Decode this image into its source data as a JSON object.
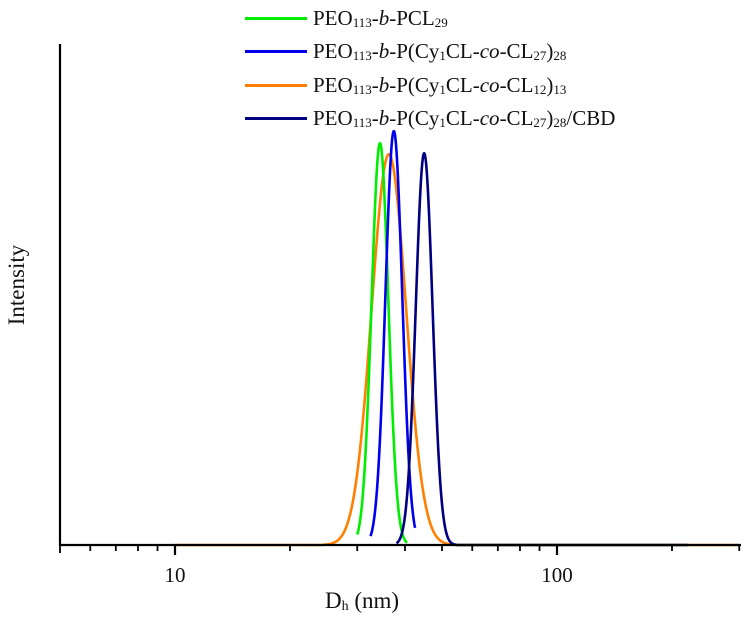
{
  "chart_data": {
    "type": "line",
    "title": "",
    "xlabel": "Dh (nm)",
    "xlabel_main": "D",
    "xlabel_sub": "h",
    "xlabel_unit": " (nm)",
    "ylabel": "Intensity",
    "xscale": "log",
    "xlim": [
      5,
      300
    ],
    "ylim": [
      0,
      100
    ],
    "x_tick_labels": [
      "10",
      "100"
    ],
    "x_major_ticks": [
      10,
      100
    ],
    "x_minor_ticks": [
      6,
      7,
      8,
      9,
      20,
      30,
      40,
      50,
      60,
      70,
      80,
      90,
      200,
      300
    ],
    "grid": false,
    "legend_position": "top-center",
    "series": [
      {
        "name": "PEO113-b-PCL29",
        "label_parts": [
          [
            "PEO",
            ""
          ],
          [
            "113",
            "sub"
          ],
          [
            "-",
            ""
          ],
          [
            "b",
            "i"
          ],
          [
            "-PCL",
            ""
          ],
          [
            "29",
            "sub"
          ]
        ],
        "color": "#00ee00",
        "peak_x": 34.4,
        "peak_y": 80.2,
        "x_start": 30.0,
        "x_end": 40.5,
        "baseline_range": [
          30.0,
          40.5
        ]
      },
      {
        "name": "PEO113-b-P(Cy1CL-co-CL27)28",
        "label_parts": [
          [
            "PEO",
            ""
          ],
          [
            "113",
            "sub"
          ],
          [
            "-",
            ""
          ],
          [
            "b",
            "i"
          ],
          [
            "-P(Cy",
            ""
          ],
          [
            "1",
            "sub"
          ],
          [
            "CL-",
            ""
          ],
          [
            "co",
            "i"
          ],
          [
            "-CL",
            ""
          ],
          [
            "27",
            "sub"
          ],
          [
            ")",
            ""
          ],
          [
            "28",
            "sub"
          ]
        ],
        "color": "#0000ee",
        "peak_x": 37.4,
        "peak_y": 82.6,
        "x_start": 32.5,
        "x_end": 42.5,
        "baseline_range": [
          32.5,
          42.5
        ]
      },
      {
        "name": "PEO113-b-P(Cy1CL-co-CL12)13",
        "label_parts": [
          [
            "PEO",
            ""
          ],
          [
            "113",
            "sub"
          ],
          [
            "-",
            ""
          ],
          [
            "b",
            "i"
          ],
          [
            "-P(Cy",
            ""
          ],
          [
            "1",
            "sub"
          ],
          [
            "CL-",
            ""
          ],
          [
            "co",
            "i"
          ],
          [
            "-CL",
            ""
          ],
          [
            "12",
            "sub"
          ],
          [
            ")",
            ""
          ],
          [
            "13",
            "sub"
          ]
        ],
        "color": "#ff8000",
        "peak_x": 36.3,
        "peak_y": 78.0,
        "x_start": 10,
        "x_end": 300,
        "baseline_range": [
          10,
          300
        ]
      },
      {
        "name": "PEO113-b-P(Cy1CL-co-CL27)28/CBD",
        "label_parts": [
          [
            "PEO",
            ""
          ],
          [
            "113",
            "sub"
          ],
          [
            "-",
            ""
          ],
          [
            "b",
            "i"
          ],
          [
            "-P(Cy",
            ""
          ],
          [
            "1",
            "sub"
          ],
          [
            "CL-",
            ""
          ],
          [
            "co",
            "i"
          ],
          [
            "-CL",
            ""
          ],
          [
            "27",
            "sub"
          ],
          [
            ")",
            ""
          ],
          [
            "28",
            "sub"
          ],
          [
            "/CBD",
            ""
          ]
        ],
        "color": "#000080",
        "peak_x": 44.9,
        "peak_y": 78.2,
        "x_start": 38.0,
        "x_end": 220,
        "baseline_range": [
          38.0,
          220
        ]
      }
    ],
    "peak_widths_log10": {
      "PEO113-b-PCL29": 0.022,
      "PEO113-b-P(Cy1CL-co-CL27)28": 0.022,
      "PEO113-b-P(Cy1CL-co-CL12)13": 0.045,
      "PEO113-b-P(Cy1CL-co-CL27)28/CBD": 0.022
    }
  }
}
